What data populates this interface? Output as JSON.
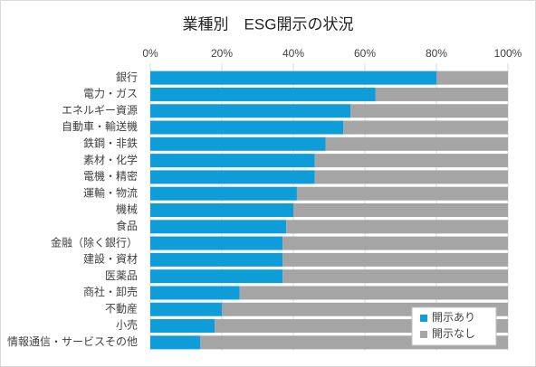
{
  "chart_data": {
    "type": "stacked-barh",
    "title": "業種別　ESG開示の状況",
    "categories": [
      "銀行",
      "電力・ガス",
      "エネルギー資源",
      "自動車・輸送機",
      "鉄鋼・非鉄",
      "素材・化学",
      "電機・精密",
      "運輸・物流",
      "機械",
      "食品",
      "金融（除く銀行）",
      "建設・資材",
      "医薬品",
      "商社・卸売",
      "不動産",
      "小売",
      "情報通信・サービスその他"
    ],
    "series": [
      {
        "name": "開示あり",
        "color": "#0e9dd9",
        "values": [
          80,
          63,
          56,
          54,
          49,
          46,
          46,
          41,
          40,
          38,
          37,
          37,
          37,
          25,
          20,
          18,
          14
        ]
      },
      {
        "name": "開示なし",
        "color": "#a5a5a5",
        "values": [
          20,
          37,
          44,
          46,
          51,
          54,
          54,
          59,
          60,
          62,
          63,
          63,
          63,
          75,
          80,
          82,
          86
        ]
      }
    ],
    "xlim": [
      0,
      100
    ],
    "xticks": [
      {
        "value": 0,
        "label": "0%"
      },
      {
        "value": 20,
        "label": "20%"
      },
      {
        "value": 40,
        "label": "40%"
      },
      {
        "value": 60,
        "label": "60%"
      },
      {
        "value": 80,
        "label": "80%"
      },
      {
        "value": 100,
        "label": "100%"
      }
    ],
    "grid": true,
    "legend": "lower-right"
  }
}
